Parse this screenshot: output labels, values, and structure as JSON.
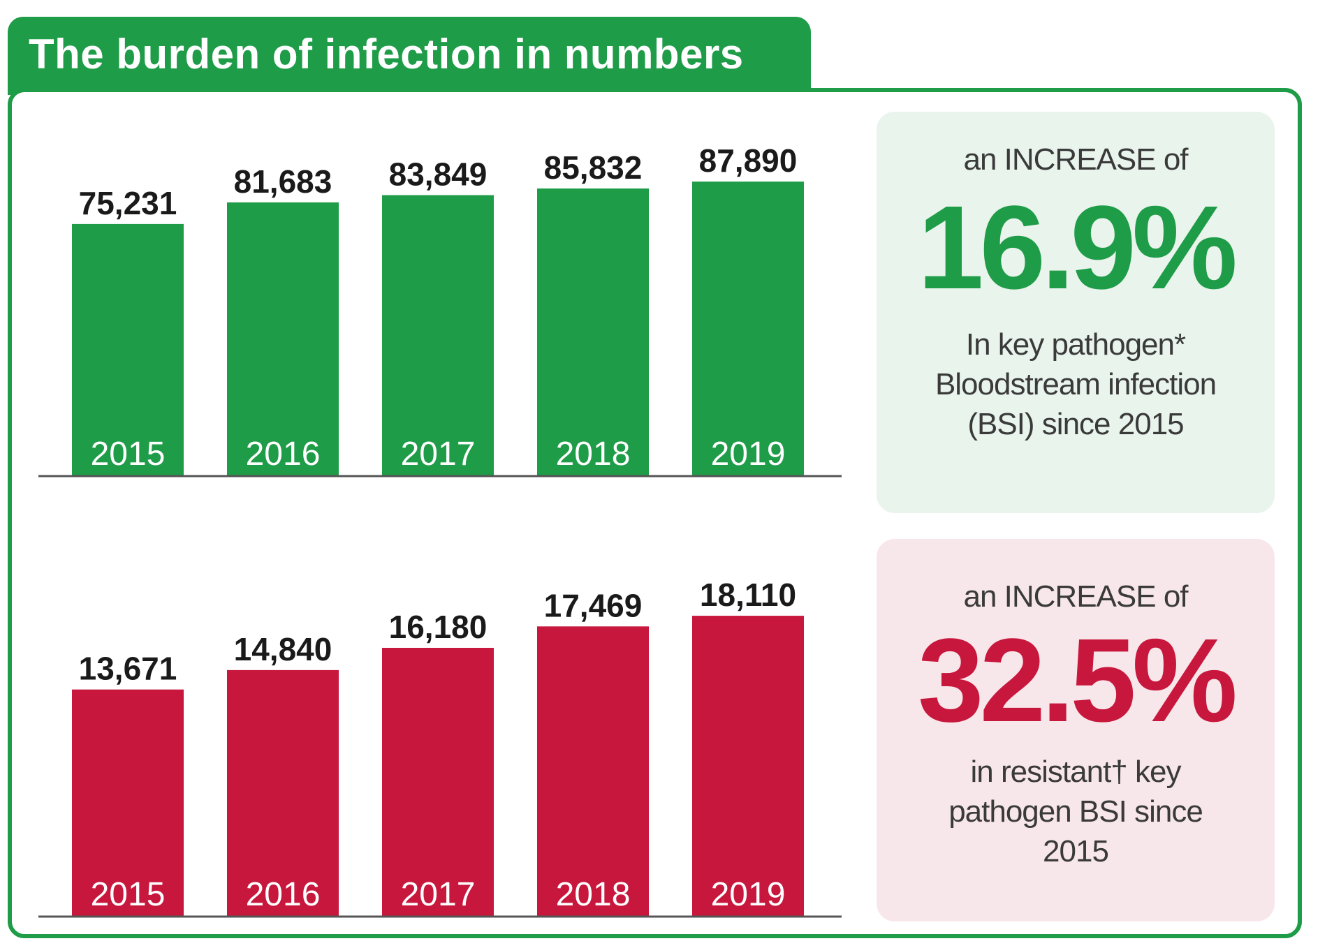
{
  "header": {
    "title": "The burden of infection in numbers"
  },
  "colors": {
    "green": "#1f9c48",
    "red": "#c8173d",
    "green_panel": "#e8f4ec",
    "red_panel": "#f8e7ea"
  },
  "chart_data": [
    {
      "type": "bar",
      "categories": [
        "2015",
        "2016",
        "2017",
        "2018",
        "2019"
      ],
      "values": [
        75231,
        81683,
        83849,
        85832,
        87890
      ],
      "value_labels": [
        "75,231",
        "81,683",
        "83,849",
        "85,832",
        "87,890"
      ],
      "color": "#1f9c48",
      "title": "",
      "xlabel": "",
      "ylabel": "",
      "ylim": [
        0,
        95000
      ]
    },
    {
      "type": "bar",
      "categories": [
        "2015",
        "2016",
        "2017",
        "2018",
        "2019"
      ],
      "values": [
        13671,
        14840,
        16180,
        17469,
        18110
      ],
      "value_labels": [
        "13,671",
        "14,840",
        "16,180",
        "17,469",
        "18,110"
      ],
      "color": "#c8173d",
      "title": "",
      "xlabel": "",
      "ylabel": "",
      "ylim": [
        0,
        19500
      ]
    }
  ],
  "stats": [
    {
      "lead": "an INCREASE of",
      "value": "16.9%",
      "desc_lines": [
        "In key pathogen*",
        "Bloodstream infection",
        "(BSI) since 2015"
      ]
    },
    {
      "lead": "an INCREASE of",
      "value": "32.5%",
      "desc_lines": [
        "in resistant† key",
        "pathogen BSI since",
        "2015"
      ]
    }
  ]
}
